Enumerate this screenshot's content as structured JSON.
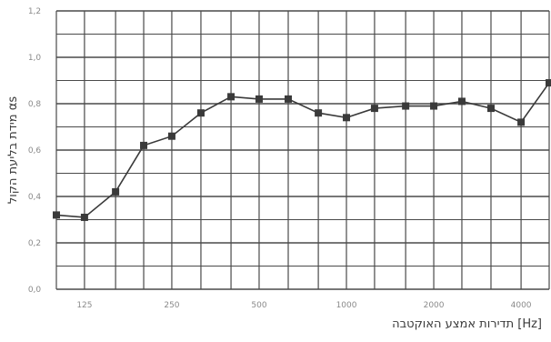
{
  "chart_data": {
    "type": "line",
    "title": "",
    "xlabel": "תדירות אמצע האוקטבה [Hz]",
    "ylabel": "מידת בליעת הקול αs",
    "x_scale": "log",
    "xlim": [
      100,
      5000
    ],
    "ylim": [
      0,
      1.2
    ],
    "y_ticks": [
      "0,0",
      "0,2",
      "0,4",
      "0,6",
      "0,8",
      "1,0",
      "1,2"
    ],
    "x_tick_labels": [
      {
        "freq": 125,
        "label": "125"
      },
      {
        "freq": 250,
        "label": "250"
      },
      {
        "freq": 500,
        "label": "500"
      },
      {
        "freq": 1000,
        "label": "1000"
      },
      {
        "freq": 2000,
        "label": "2000"
      },
      {
        "freq": 4000,
        "label": "4000"
      }
    ],
    "grid": true,
    "series": [
      {
        "color": "#3a3a3a",
        "marker": "square",
        "x": [
          100,
          125,
          160,
          200,
          250,
          315,
          400,
          500,
          630,
          800,
          1000,
          1250,
          1600,
          2000,
          2500,
          3150,
          4000,
          5000
        ],
        "y": [
          0.32,
          0.31,
          0.42,
          0.62,
          0.66,
          0.76,
          0.83,
          0.82,
          0.82,
          0.76,
          0.74,
          0.78,
          0.79,
          0.79,
          0.81,
          0.78,
          0.72,
          0.89
        ]
      }
    ]
  }
}
